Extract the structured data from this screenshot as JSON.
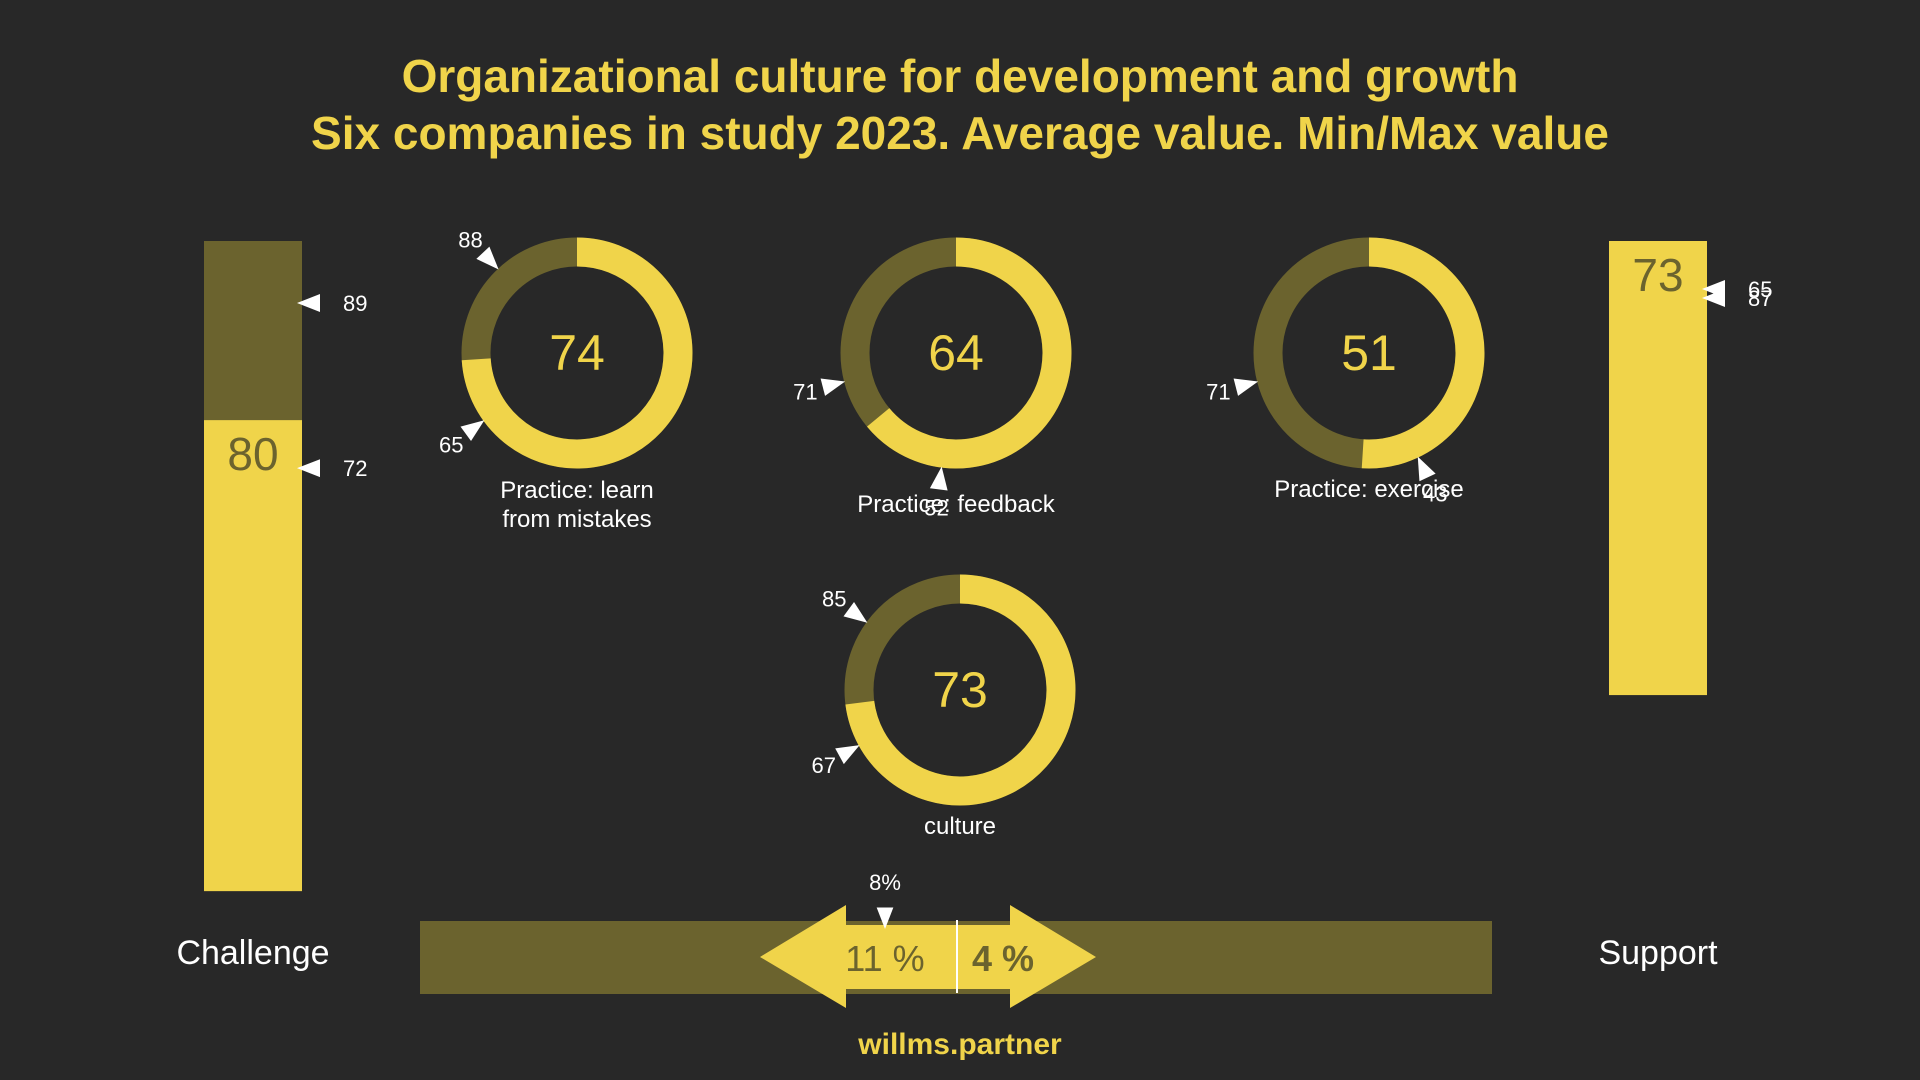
{
  "title_line1": "Organizational culture for development and growth",
  "title_line2": "Six companies in study 2023. Average value. Min/Max value",
  "footer": "willms.partner",
  "colors": {
    "background": "#282828",
    "accent": "#f0d44a",
    "muted": "#6b632e",
    "marker": "#ffffff"
  },
  "chart_data": {
    "type": "donut-and-bar",
    "scale": [
      0,
      100
    ],
    "side_bars": [
      {
        "label": "Challenge",
        "average": "80",
        "avg_value": 80,
        "max": "89",
        "min": "72",
        "max_value": 89,
        "min_value": 72,
        "total_value": 100
      },
      {
        "label": "Support",
        "average": "73",
        "avg_value": 73,
        "max": "87",
        "min": "65",
        "max_value": 87,
        "min_value": 65,
        "total_value": 73
      }
    ],
    "donuts": [
      {
        "label_lines": [
          "Practice: learn",
          "from mistakes"
        ],
        "average": "74",
        "avg_value": 74,
        "markers": [
          {
            "text": "88",
            "value": 88
          },
          {
            "text": "65",
            "value": 65
          }
        ]
      },
      {
        "label_lines": [
          "Practice: feedback"
        ],
        "average": "64",
        "avg_value": 64,
        "markers": [
          {
            "text": "71",
            "value": 71
          },
          {
            "text": "52",
            "value": 52
          }
        ]
      },
      {
        "label_lines": [
          "Practice: exercise"
        ],
        "average": "51",
        "avg_value": 51,
        "markers": [
          {
            "text": "71",
            "value": 71
          },
          {
            "text": "43",
            "value": 43
          }
        ]
      },
      {
        "label_lines": [
          "culture"
        ],
        "average": "73",
        "avg_value": 73,
        "markers": [
          {
            "text": "85",
            "value": 85
          },
          {
            "text": "67",
            "value": 67
          }
        ]
      }
    ],
    "balance": {
      "left_label": "Challenge",
      "right_label": "Support",
      "left_value": "11 %",
      "right_value": "4 %",
      "marker": "8%"
    }
  }
}
